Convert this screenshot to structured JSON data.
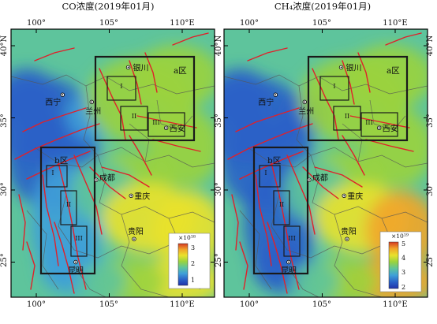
{
  "panels": [
    {
      "id": "co",
      "title": "CO浓度(2019年01月)",
      "colorbar": {
        "exponent": "×10¹⁸",
        "ticks": [
          "3",
          "2",
          "1"
        ]
      },
      "lon_ticks": [
        "100°",
        "105°",
        "110°E"
      ],
      "lat_ticks": [
        "40°N",
        "35°",
        "30°",
        "25°"
      ],
      "cities": [
        {
          "name": "银川",
          "lon": 106.3,
          "lat": 38.5
        },
        {
          "name": "西宁",
          "lon": 101.8,
          "lat": 36.6
        },
        {
          "name": "兰州",
          "lon": 103.8,
          "lat": 36.1
        },
        {
          "name": "西安",
          "lon": 108.9,
          "lat": 34.3
        },
        {
          "name": "成都",
          "lon": 104.1,
          "lat": 30.7
        },
        {
          "name": "重庆",
          "lon": 106.5,
          "lat": 29.6
        },
        {
          "name": "贵阳",
          "lon": 106.7,
          "lat": 26.6
        },
        {
          "name": "昆明",
          "lon": 102.7,
          "lat": 25.0
        }
      ],
      "region_labels": [
        "a区",
        "b区"
      ],
      "subregion_labels": [
        "I",
        "II",
        "III",
        "I",
        "II",
        "III"
      ]
    },
    {
      "id": "ch4",
      "title": "CH₄浓度(2019年01月)",
      "colorbar": {
        "exponent": "×10¹⁹",
        "ticks": [
          "5",
          "4",
          "3",
          "2"
        ]
      },
      "lon_ticks": [
        "100°",
        "105°",
        "110°E"
      ],
      "lat_ticks": [
        "40°N",
        "35°",
        "30°",
        "25°"
      ],
      "cities": [
        {
          "name": "银川",
          "lon": 106.3,
          "lat": 38.5
        },
        {
          "name": "西宁",
          "lon": 101.8,
          "lat": 36.6
        },
        {
          "name": "兰州",
          "lon": 103.8,
          "lat": 36.1
        },
        {
          "name": "西安",
          "lon": 108.9,
          "lat": 34.3
        },
        {
          "name": "成都",
          "lon": 104.1,
          "lat": 30.7
        },
        {
          "name": "重庆",
          "lon": 106.5,
          "lat": 29.6
        },
        {
          "name": "贵阳",
          "lon": 106.7,
          "lat": 26.6
        },
        {
          "name": "昆明",
          "lon": 102.7,
          "lat": 25.0
        }
      ],
      "region_labels": [
        "a区",
        "b区"
      ],
      "subregion_labels": [
        "I",
        "II",
        "III",
        "I",
        "II",
        "III"
      ]
    }
  ],
  "colors": {
    "scale": [
      "#2233aa",
      "#2a62c8",
      "#3fa0d8",
      "#5ec49c",
      "#9ad33e",
      "#e9e22c",
      "#f1a52a",
      "#d63a24"
    ],
    "fault": "#e0202a",
    "box": "#1a1a1a"
  }
}
